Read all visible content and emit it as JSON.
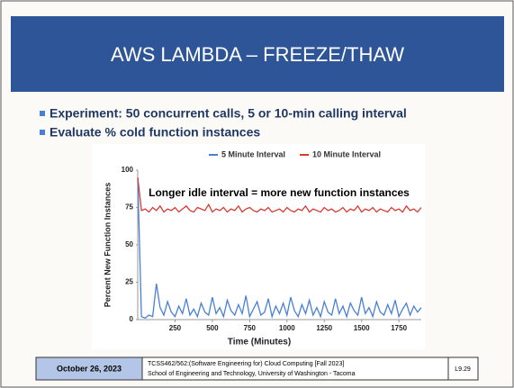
{
  "slide": {
    "title": "AWS LAMBDA – FREEZE/THAW",
    "bullets": [
      "Experiment: 50 concurrent calls, 5 or 10-min calling interval",
      "Evaluate % cold function instances"
    ],
    "footer": {
      "date": "October 26, 2023",
      "course": [
        "TCSS462/562:(Software Engineering for) Cloud Computing [Fall 2023]",
        "School of Engineering and Technology, University of Washington - Tacoma"
      ],
      "page": "L9.29"
    }
  },
  "chart_data": {
    "type": "line",
    "annotation": "Longer idle interval = more new function instances",
    "x_label": "Time (Minutes)",
    "y_label": "Percent New Function Instances",
    "x": [
      0,
      25,
      50,
      75,
      100,
      125,
      150,
      175,
      200,
      225,
      250,
      275,
      300,
      325,
      350,
      375,
      400,
      425,
      450,
      475,
      500,
      525,
      550,
      575,
      600,
      625,
      650,
      675,
      700,
      725,
      750,
      775,
      800,
      825,
      850,
      875,
      900,
      925,
      950,
      975,
      1000,
      1025,
      1050,
      1075,
      1100,
      1125,
      1150,
      1175,
      1200,
      1225,
      1250,
      1275,
      1300,
      1325,
      1350,
      1375,
      1400,
      1425,
      1450,
      1475,
      1500,
      1525,
      1550,
      1575,
      1600,
      1625,
      1650,
      1675,
      1700,
      1725,
      1750,
      1775,
      1800,
      1825,
      1850,
      1875,
      1900
    ],
    "series": [
      {
        "name": "5 Minute Interval",
        "color": "#4a7fd6",
        "values": [
          95,
          2,
          1,
          3,
          2,
          24,
          8,
          3,
          12,
          5,
          2,
          9,
          4,
          14,
          3,
          7,
          2,
          11,
          5,
          3,
          15,
          4,
          8,
          2,
          13,
          6,
          3,
          10,
          4,
          16,
          2,
          7,
          12,
          3,
          5,
          14,
          2,
          9,
          4,
          11,
          3,
          15,
          6,
          2,
          10,
          4,
          13,
          3,
          8,
          2,
          12,
          5,
          3,
          14,
          4,
          9,
          2,
          11,
          6,
          3,
          15,
          4,
          8,
          2,
          12,
          5,
          3,
          10,
          4,
          13,
          2,
          7,
          11,
          3,
          9,
          5,
          8
        ]
      },
      {
        "name": "10 Minute Interval",
        "color": "#d63a32",
        "values": [
          95,
          73,
          74,
          72,
          75,
          73,
          76,
          72,
          74,
          73,
          75,
          72,
          74,
          76,
          73,
          72,
          75,
          74,
          73,
          77,
          72,
          74,
          73,
          75,
          72,
          74,
          73,
          76,
          72,
          74,
          75,
          73,
          72,
          74,
          73,
          75,
          72,
          73,
          74,
          72,
          75,
          73,
          72,
          74,
          73,
          76,
          72,
          74,
          73,
          72,
          75,
          73,
          74,
          72,
          73,
          75,
          72,
          74,
          73,
          76,
          72,
          74,
          73,
          75,
          72,
          74,
          73,
          72,
          75,
          73,
          74,
          72,
          76,
          73,
          74,
          72,
          75
        ]
      }
    ],
    "xlim": [
      0,
      1900
    ],
    "ylim": [
      0,
      100
    ],
    "xticks": [
      250,
      500,
      750,
      1000,
      1250,
      1500,
      1750
    ],
    "yticks": [
      0,
      25,
      50,
      75,
      100
    ],
    "legend": "top"
  }
}
